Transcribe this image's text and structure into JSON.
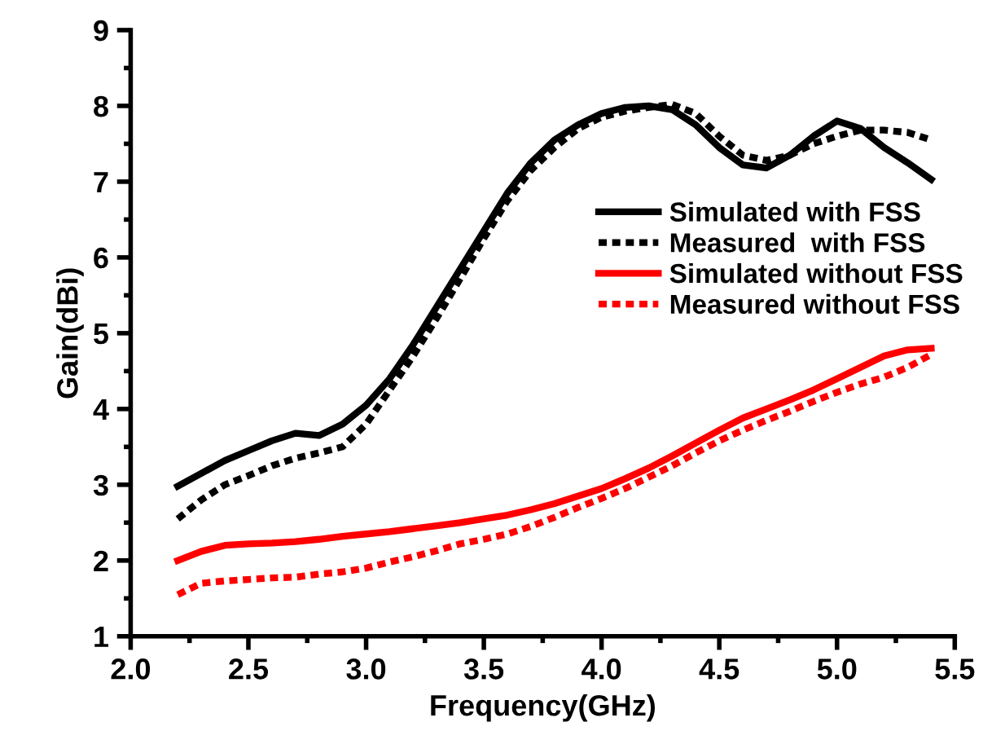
{
  "chart_data": {
    "type": "line",
    "xlabel": "Frequency(GHz)",
    "ylabel": "Gain(dBi)",
    "x": [
      2.2,
      2.3,
      2.4,
      2.5,
      2.6,
      2.7,
      2.8,
      2.9,
      3.0,
      3.1,
      3.2,
      3.3,
      3.4,
      3.5,
      3.6,
      3.7,
      3.8,
      3.9,
      4.0,
      4.1,
      4.2,
      4.3,
      4.4,
      4.5,
      4.6,
      4.7,
      4.8,
      4.9,
      5.0,
      5.1,
      5.2,
      5.3,
      5.4
    ],
    "series": [
      {
        "name": "Simulated with FSS",
        "color": "#000000",
        "line_style": "solid",
        "values": [
          2.98,
          3.15,
          3.32,
          3.45,
          3.58,
          3.68,
          3.65,
          3.8,
          4.05,
          4.4,
          4.85,
          5.35,
          5.85,
          6.35,
          6.85,
          7.25,
          7.55,
          7.75,
          7.9,
          7.98,
          8.0,
          7.95,
          7.75,
          7.45,
          7.22,
          7.18,
          7.35,
          7.6,
          7.8,
          7.7,
          7.45,
          7.25,
          7.03
        ]
      },
      {
        "name": "Measured  with FSS",
        "color": "#000000",
        "line_style": "dotted",
        "values": [
          2.55,
          2.8,
          3.0,
          3.12,
          3.25,
          3.35,
          3.42,
          3.5,
          3.8,
          4.25,
          4.7,
          5.2,
          5.72,
          6.25,
          6.75,
          7.15,
          7.45,
          7.7,
          7.85,
          7.93,
          7.98,
          8.02,
          7.9,
          7.6,
          7.35,
          7.28,
          7.35,
          7.5,
          7.6,
          7.68,
          7.68,
          7.65,
          7.55
        ]
      },
      {
        "name": "Simulated without FSS",
        "color": "#ff0000",
        "line_style": "solid",
        "values": [
          2.0,
          2.12,
          2.2,
          2.22,
          2.23,
          2.25,
          2.28,
          2.32,
          2.35,
          2.38,
          2.42,
          2.46,
          2.5,
          2.55,
          2.6,
          2.67,
          2.75,
          2.85,
          2.95,
          3.08,
          3.22,
          3.38,
          3.55,
          3.72,
          3.88,
          4.0,
          4.12,
          4.25,
          4.4,
          4.55,
          4.7,
          4.78,
          4.8
        ]
      },
      {
        "name": "Measured without FSS",
        "color": "#ff0000",
        "line_style": "dotted",
        "values": [
          1.55,
          1.7,
          1.73,
          1.75,
          1.77,
          1.78,
          1.82,
          1.85,
          1.9,
          1.98,
          2.05,
          2.13,
          2.22,
          2.28,
          2.35,
          2.45,
          2.57,
          2.7,
          2.82,
          2.95,
          3.1,
          3.25,
          3.42,
          3.58,
          3.72,
          3.85,
          3.97,
          4.1,
          4.22,
          4.33,
          4.42,
          4.55,
          4.72
        ]
      }
    ],
    "xlim": [
      2.0,
      5.5
    ],
    "xticks": [
      {
        "value": 2,
        "label": "2.0"
      },
      2.5,
      {
        "value": 3,
        "label": "3.0"
      },
      3.5,
      {
        "value": 4,
        "label": "4.0"
      },
      4.5,
      {
        "value": 5,
        "label": "5.0"
      },
      5.5
    ],
    "ylim": [
      1,
      9
    ],
    "yticks": [
      1,
      2,
      3,
      4,
      5,
      6,
      7,
      8,
      9
    ],
    "grid": false,
    "legend": "right",
    "marker": "none"
  }
}
